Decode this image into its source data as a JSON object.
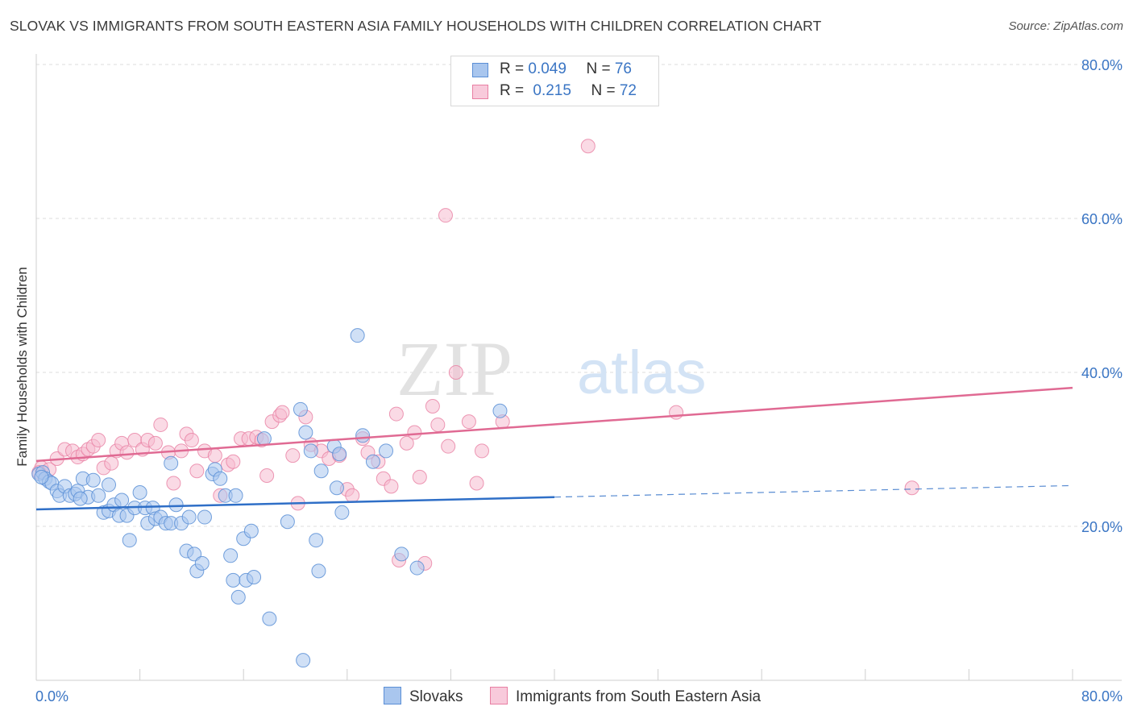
{
  "title": "SLOVAK VS IMMIGRANTS FROM SOUTH EASTERN ASIA FAMILY HOUSEHOLDS WITH CHILDREN CORRELATION CHART",
  "source": "Source: ZipAtlas.com",
  "watermark": {
    "zip": "ZIP",
    "atlas": "atlas"
  },
  "legend": {
    "rows": [
      {
        "r_label": "R = ",
        "r_value": "0.049",
        "n_label": "N = ",
        "n_value": "76"
      },
      {
        "r_label": "R = ",
        "r_value": "0.215",
        "n_label": "N = ",
        "n_value": "72"
      }
    ]
  },
  "bottom_legend": {
    "series_a": "Slovaks",
    "series_b": "Immigrants from South Eastern Asia"
  },
  "colors": {
    "blue": "#5b8fd6",
    "blue_fill": "#a9c6ee",
    "pink": "#e87fa3",
    "pink_fill": "#f5bcd0",
    "blue_line": "#2f6fc7",
    "pink_line": "#e06a93",
    "axis_text": "#3a75c4"
  },
  "chart_data": {
    "type": "scatter",
    "title": "SLOVAK VS IMMIGRANTS FROM SOUTH EASTERN ASIA FAMILY HOUSEHOLDS WITH CHILDREN CORRELATION CHART",
    "xlabel": "",
    "ylabel": "Family Households with Children",
    "xlim": [
      0,
      80
    ],
    "ylim": [
      0,
      80
    ],
    "x_tick_labels": [
      "0.0%",
      "80.0%"
    ],
    "y_ticks": [
      20,
      40,
      60,
      80
    ],
    "y_tick_labels": [
      "20.0%",
      "40.0%",
      "60.0%",
      "80.0%"
    ],
    "series": [
      {
        "name": "Slovaks",
        "R": 0.049,
        "N": 76,
        "trend": {
          "x0": 0,
          "y0": 22.2,
          "x1": 40,
          "y1": 23.8,
          "dash_to_x": 80,
          "dash_to_y": 25.3
        },
        "points": [
          [
            0.2,
            26.8
          ],
          [
            0.5,
            27.0
          ],
          [
            0.7,
            26.2
          ],
          [
            1.0,
            25.8
          ],
          [
            1.2,
            25.6
          ],
          [
            1.6,
            24.6
          ],
          [
            1.8,
            24.0
          ],
          [
            2.2,
            25.2
          ],
          [
            2.6,
            24.0
          ],
          [
            3.0,
            24.2
          ],
          [
            3.2,
            24.6
          ],
          [
            3.6,
            26.2
          ],
          [
            4.0,
            23.8
          ],
          [
            4.4,
            26.0
          ],
          [
            4.8,
            24.0
          ],
          [
            5.2,
            21.8
          ],
          [
            5.6,
            22.0
          ],
          [
            5.6,
            25.4
          ],
          [
            6.0,
            22.8
          ],
          [
            6.4,
            21.4
          ],
          [
            6.6,
            23.4
          ],
          [
            7.0,
            21.4
          ],
          [
            7.2,
            18.2
          ],
          [
            7.6,
            22.4
          ],
          [
            8.0,
            24.4
          ],
          [
            8.4,
            22.4
          ],
          [
            8.6,
            20.4
          ],
          [
            9.0,
            22.4
          ],
          [
            9.2,
            21.0
          ],
          [
            9.6,
            21.2
          ],
          [
            10.0,
            20.4
          ],
          [
            10.4,
            20.4
          ],
          [
            10.4,
            28.2
          ],
          [
            10.8,
            22.8
          ],
          [
            11.2,
            20.4
          ],
          [
            11.6,
            16.8
          ],
          [
            11.8,
            21.2
          ],
          [
            12.2,
            16.4
          ],
          [
            12.4,
            14.2
          ],
          [
            12.8,
            15.2
          ],
          [
            13.0,
            21.2
          ],
          [
            13.6,
            26.8
          ],
          [
            13.8,
            27.4
          ],
          [
            14.2,
            26.2
          ],
          [
            14.6,
            24.0
          ],
          [
            15.0,
            16.2
          ],
          [
            15.2,
            13.0
          ],
          [
            15.4,
            24.0
          ],
          [
            15.6,
            10.8
          ],
          [
            16.0,
            18.4
          ],
          [
            16.2,
            13.0
          ],
          [
            16.6,
            19.4
          ],
          [
            16.8,
            13.4
          ],
          [
            17.6,
            31.4
          ],
          [
            18.0,
            8.0
          ],
          [
            19.4,
            20.6
          ],
          [
            20.4,
            35.2
          ],
          [
            20.6,
            2.6
          ],
          [
            20.8,
            32.2
          ],
          [
            21.2,
            29.8
          ],
          [
            21.6,
            18.2
          ],
          [
            21.8,
            14.2
          ],
          [
            22.0,
            27.2
          ],
          [
            23.0,
            30.4
          ],
          [
            23.2,
            25.0
          ],
          [
            23.4,
            29.4
          ],
          [
            23.6,
            21.8
          ],
          [
            24.8,
            44.8
          ],
          [
            25.2,
            31.8
          ],
          [
            26.0,
            28.4
          ],
          [
            27.0,
            29.8
          ],
          [
            28.2,
            16.4
          ],
          [
            29.4,
            14.6
          ],
          [
            35.8,
            35.0
          ],
          [
            0.4,
            26.4
          ],
          [
            3.4,
            23.6
          ]
        ]
      },
      {
        "name": "Immigrants from South Eastern Asia",
        "R": 0.215,
        "N": 72,
        "trend": {
          "x0": 0,
          "y0": 28.5,
          "x1": 80,
          "y1": 38.0
        },
        "points": [
          [
            0.4,
            27.6
          ],
          [
            1.0,
            27.4
          ],
          [
            1.6,
            28.8
          ],
          [
            2.2,
            30.0
          ],
          [
            2.8,
            29.8
          ],
          [
            3.2,
            29.0
          ],
          [
            3.6,
            29.4
          ],
          [
            4.0,
            30.0
          ],
          [
            4.4,
            30.4
          ],
          [
            4.8,
            31.2
          ],
          [
            5.2,
            27.6
          ],
          [
            5.8,
            28.2
          ],
          [
            6.2,
            29.8
          ],
          [
            6.6,
            30.8
          ],
          [
            7.0,
            29.6
          ],
          [
            7.6,
            31.2
          ],
          [
            8.2,
            30.0
          ],
          [
            8.6,
            31.2
          ],
          [
            9.2,
            30.8
          ],
          [
            9.6,
            33.2
          ],
          [
            10.2,
            29.6
          ],
          [
            10.6,
            25.6
          ],
          [
            11.2,
            29.8
          ],
          [
            11.6,
            32.0
          ],
          [
            12.0,
            31.2
          ],
          [
            12.4,
            27.2
          ],
          [
            13.0,
            29.8
          ],
          [
            13.8,
            29.2
          ],
          [
            14.2,
            24.0
          ],
          [
            14.8,
            28.0
          ],
          [
            15.2,
            28.4
          ],
          [
            15.8,
            31.4
          ],
          [
            16.4,
            31.4
          ],
          [
            17.0,
            31.6
          ],
          [
            17.4,
            31.2
          ],
          [
            17.8,
            26.6
          ],
          [
            18.2,
            33.6
          ],
          [
            18.8,
            34.4
          ],
          [
            19.0,
            34.8
          ],
          [
            19.8,
            29.2
          ],
          [
            20.2,
            23.0
          ],
          [
            20.8,
            34.2
          ],
          [
            21.2,
            30.6
          ],
          [
            22.0,
            29.8
          ],
          [
            22.6,
            28.8
          ],
          [
            23.4,
            29.2
          ],
          [
            24.0,
            24.8
          ],
          [
            24.4,
            24.0
          ],
          [
            25.2,
            31.4
          ],
          [
            25.6,
            29.6
          ],
          [
            26.4,
            28.4
          ],
          [
            26.8,
            26.2
          ],
          [
            27.4,
            25.2
          ],
          [
            27.8,
            34.6
          ],
          [
            28.6,
            30.8
          ],
          [
            29.2,
            32.2
          ],
          [
            29.6,
            26.4
          ],
          [
            30.0,
            15.2
          ],
          [
            30.6,
            35.6
          ],
          [
            31.0,
            33.2
          ],
          [
            31.6,
            60.4
          ],
          [
            31.8,
            30.4
          ],
          [
            32.4,
            40.0
          ],
          [
            33.4,
            33.6
          ],
          [
            34.0,
            25.6
          ],
          [
            34.4,
            29.8
          ],
          [
            36.0,
            33.6
          ],
          [
            42.6,
            69.4
          ],
          [
            49.4,
            34.8
          ],
          [
            67.6,
            25.0
          ],
          [
            28.0,
            15.6
          ],
          [
            0.2,
            27.0
          ]
        ]
      }
    ]
  }
}
